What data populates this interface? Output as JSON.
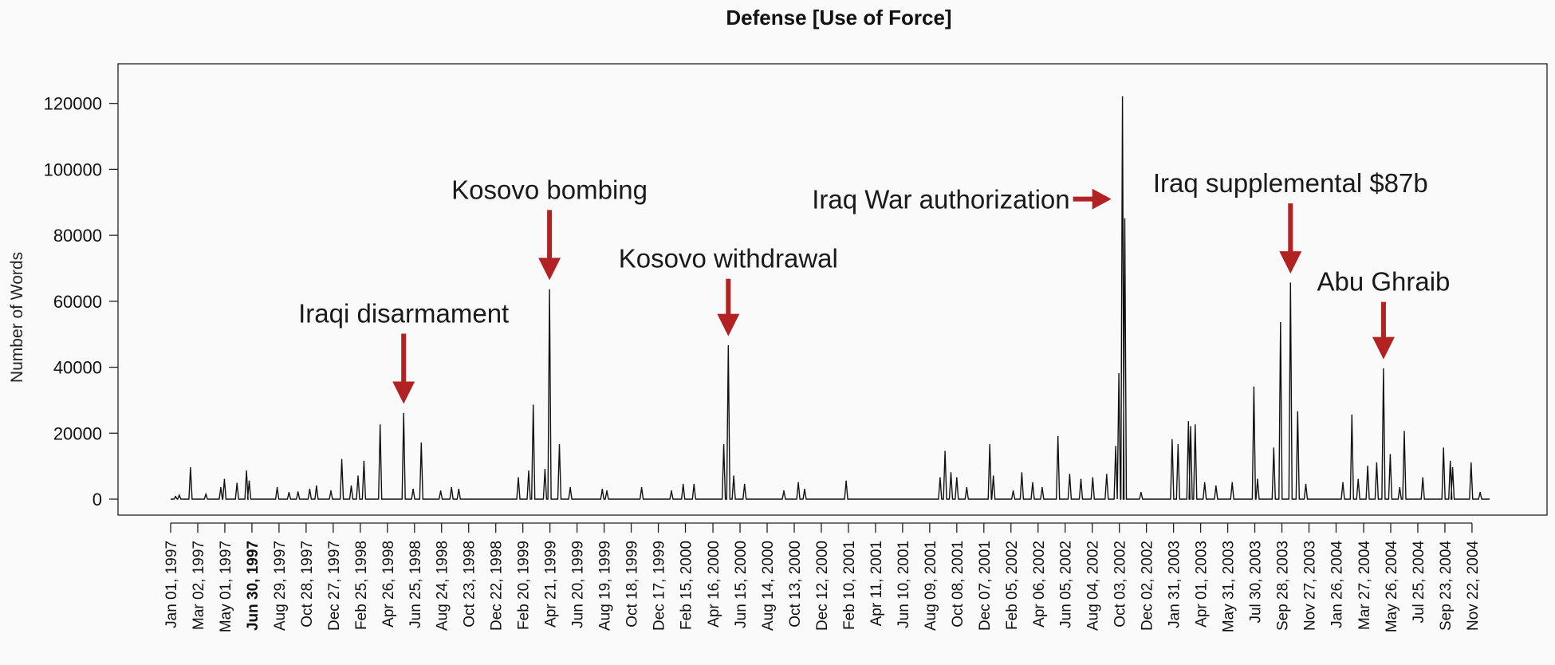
{
  "chart_data": {
    "type": "line",
    "title": "Defense [Use of Force]",
    "xlabel": "",
    "ylabel": "Number of Words",
    "ylim": [
      0,
      125000
    ],
    "xlim": [
      "1997-01-01",
      "2004-12-31"
    ],
    "yticks": [
      0,
      20000,
      40000,
      60000,
      80000,
      100000,
      120000
    ],
    "xtick_labels": [
      {
        "date": "1997-01-01",
        "label": "Jan 01, 1997",
        "bold": false
      },
      {
        "date": "1997-03-02",
        "label": "Mar 02, 1997",
        "bold": false
      },
      {
        "date": "1997-05-01",
        "label": "May 01, 1997",
        "bold": false
      },
      {
        "date": "1997-06-30",
        "label": "Jun 30, 1997",
        "bold": true
      },
      {
        "date": "1997-08-29",
        "label": "Aug 29, 1997",
        "bold": false
      },
      {
        "date": "1997-10-28",
        "label": "Oct 28, 1997",
        "bold": false
      },
      {
        "date": "1997-12-27",
        "label": "Dec 27, 1997",
        "bold": false
      },
      {
        "date": "1998-02-25",
        "label": "Feb 25, 1998",
        "bold": false
      },
      {
        "date": "1998-04-26",
        "label": "Apr 26, 1998",
        "bold": false
      },
      {
        "date": "1998-06-25",
        "label": "Jun 25, 1998",
        "bold": false
      },
      {
        "date": "1998-08-24",
        "label": "Aug 24, 1998",
        "bold": false
      },
      {
        "date": "1998-10-23",
        "label": "Oct 23, 1998",
        "bold": false
      },
      {
        "date": "1998-12-22",
        "label": "Dec 22, 1998",
        "bold": false
      },
      {
        "date": "1999-02-20",
        "label": "Feb 20, 1999",
        "bold": false
      },
      {
        "date": "1999-04-21",
        "label": "Apr 21, 1999",
        "bold": false
      },
      {
        "date": "1999-06-20",
        "label": "Jun 20, 1999",
        "bold": false
      },
      {
        "date": "1999-08-19",
        "label": "Aug 19, 1999",
        "bold": false
      },
      {
        "date": "1999-10-18",
        "label": "Oct 18, 1999",
        "bold": false
      },
      {
        "date": "1999-12-17",
        "label": "Dec 17, 1999",
        "bold": false
      },
      {
        "date": "2000-02-15",
        "label": "Feb 15, 2000",
        "bold": false
      },
      {
        "date": "2000-04-16",
        "label": "Apr 16, 2000",
        "bold": false
      },
      {
        "date": "2000-06-15",
        "label": "Jun 15, 2000",
        "bold": false
      },
      {
        "date": "2000-08-14",
        "label": "Aug 14, 2000",
        "bold": false
      },
      {
        "date": "2000-10-13",
        "label": "Oct 13, 2000",
        "bold": false
      },
      {
        "date": "2000-12-12",
        "label": "Dec 12, 2000",
        "bold": false
      },
      {
        "date": "2001-02-10",
        "label": "Feb 10, 2001",
        "bold": false
      },
      {
        "date": "2001-04-11",
        "label": "Apr 11, 2001",
        "bold": false
      },
      {
        "date": "2001-06-10",
        "label": "Jun 10, 2001",
        "bold": false
      },
      {
        "date": "2001-08-09",
        "label": "Aug 09, 2001",
        "bold": false
      },
      {
        "date": "2001-10-08",
        "label": "Oct 08, 2001",
        "bold": false
      },
      {
        "date": "2001-12-07",
        "label": "Dec 07, 2001",
        "bold": false
      },
      {
        "date": "2002-02-05",
        "label": "Feb 05, 2002",
        "bold": false
      },
      {
        "date": "2002-04-06",
        "label": "Apr 06, 2002",
        "bold": false
      },
      {
        "date": "2002-06-05",
        "label": "Jun 05, 2002",
        "bold": false
      },
      {
        "date": "2002-08-04",
        "label": "Aug 04, 2002",
        "bold": false
      },
      {
        "date": "2002-10-03",
        "label": "Oct 03, 2002",
        "bold": false
      },
      {
        "date": "2002-12-02",
        "label": "Dec 02, 2002",
        "bold": false
      },
      {
        "date": "2003-01-31",
        "label": "Jan 31, 2003",
        "bold": false
      },
      {
        "date": "2003-04-01",
        "label": "Apr 01, 2003",
        "bold": false
      },
      {
        "date": "2003-05-31",
        "label": "May 31, 2003",
        "bold": false
      },
      {
        "date": "2003-07-30",
        "label": "Jul 30, 2003",
        "bold": false
      },
      {
        "date": "2003-09-28",
        "label": "Sep 28, 2003",
        "bold": false
      },
      {
        "date": "2003-11-27",
        "label": "Nov 27, 2003",
        "bold": false
      },
      {
        "date": "2004-01-26",
        "label": "Jan 26, 2004",
        "bold": false
      },
      {
        "date": "2004-03-27",
        "label": "Mar 27, 2004",
        "bold": false
      },
      {
        "date": "2004-05-26",
        "label": "May 26, 2004",
        "bold": false
      },
      {
        "date": "2004-07-25",
        "label": "Jul 25, 2004",
        "bold": false
      },
      {
        "date": "2004-09-23",
        "label": "Sep 23, 2004",
        "bold": false
      },
      {
        "date": "2004-11-22",
        "label": "Nov 22, 2004",
        "bold": false
      }
    ],
    "series": [
      {
        "color": "#111111",
        "points": [
          [
            "1997-01-12",
            800
          ],
          [
            "1997-01-20",
            1200
          ],
          [
            "1997-02-14",
            9500
          ],
          [
            "1997-03-20",
            1500
          ],
          [
            "1997-04-22",
            3500
          ],
          [
            "1997-04-30",
            6000
          ],
          [
            "1997-05-28",
            4800
          ],
          [
            "1997-06-18",
            8500
          ],
          [
            "1997-06-24",
            5500
          ],
          [
            "1997-08-25",
            3500
          ],
          [
            "1997-09-20",
            2000
          ],
          [
            "1997-10-10",
            2200
          ],
          [
            "1997-11-05",
            3000
          ],
          [
            "1997-11-20",
            4000
          ],
          [
            "1997-12-22",
            2500
          ],
          [
            "1998-01-15",
            12000
          ],
          [
            "1998-02-05",
            4000
          ],
          [
            "1998-02-20",
            7000
          ],
          [
            "1998-03-05",
            11500
          ],
          [
            "1998-04-10",
            22500
          ],
          [
            "1998-06-01",
            26000
          ],
          [
            "1998-06-22",
            3000
          ],
          [
            "1998-07-10",
            17000
          ],
          [
            "1998-08-22",
            2500
          ],
          [
            "1998-09-15",
            3500
          ],
          [
            "1998-10-01",
            3000
          ],
          [
            "1999-02-10",
            6500
          ],
          [
            "1999-03-05",
            8500
          ],
          [
            "1999-03-15",
            28500
          ],
          [
            "1999-04-10",
            9000
          ],
          [
            "1999-04-20",
            63500
          ],
          [
            "1999-05-12",
            16500
          ],
          [
            "1999-06-05",
            3500
          ],
          [
            "1999-08-15",
            3000
          ],
          [
            "1999-08-25",
            2500
          ],
          [
            "1999-11-10",
            3500
          ],
          [
            "2000-01-15",
            2500
          ],
          [
            "2000-02-10",
            4500
          ],
          [
            "2000-03-05",
            4500
          ],
          [
            "2000-05-10",
            16500
          ],
          [
            "2000-05-20",
            46500
          ],
          [
            "2000-06-01",
            7000
          ],
          [
            "2000-06-25",
            4500
          ],
          [
            "2000-09-20",
            2500
          ],
          [
            "2000-10-22",
            5000
          ],
          [
            "2000-11-05",
            3000
          ],
          [
            "2001-02-05",
            5500
          ],
          [
            "2001-09-01",
            6500
          ],
          [
            "2001-09-12",
            14500
          ],
          [
            "2001-09-25",
            8000
          ],
          [
            "2001-10-08",
            6500
          ],
          [
            "2001-10-30",
            3500
          ],
          [
            "2001-12-20",
            16500
          ],
          [
            "2001-12-28",
            7000
          ],
          [
            "2002-02-10",
            2500
          ],
          [
            "2002-03-01",
            8000
          ],
          [
            "2002-03-25",
            5000
          ],
          [
            "2002-04-15",
            3500
          ],
          [
            "2002-05-20",
            19000
          ],
          [
            "2002-06-15",
            7500
          ],
          [
            "2002-07-10",
            6000
          ],
          [
            "2002-08-05",
            6500
          ],
          [
            "2002-09-05",
            7500
          ],
          [
            "2002-09-25",
            16000
          ],
          [
            "2002-10-02",
            38000
          ],
          [
            "2002-10-10",
            122000
          ],
          [
            "2002-10-15",
            85000
          ],
          [
            "2002-11-20",
            2000
          ],
          [
            "2003-01-28",
            18000
          ],
          [
            "2003-02-10",
            16500
          ],
          [
            "2003-03-05",
            23500
          ],
          [
            "2003-03-10",
            22000
          ],
          [
            "2003-03-20",
            22500
          ],
          [
            "2003-04-10",
            5000
          ],
          [
            "2003-05-05",
            4000
          ],
          [
            "2003-06-10",
            5000
          ],
          [
            "2003-07-28",
            34000
          ],
          [
            "2003-08-05",
            6000
          ],
          [
            "2003-09-10",
            15500
          ],
          [
            "2003-09-25",
            53500
          ],
          [
            "2003-10-17",
            65500
          ],
          [
            "2003-11-02",
            26500
          ],
          [
            "2003-11-20",
            4500
          ],
          [
            "2004-02-10",
            5000
          ],
          [
            "2004-03-01",
            25500
          ],
          [
            "2004-03-15",
            6000
          ],
          [
            "2004-04-05",
            10000
          ],
          [
            "2004-04-25",
            11000
          ],
          [
            "2004-05-10",
            39500
          ],
          [
            "2004-05-25",
            13500
          ],
          [
            "2004-06-15",
            3500
          ],
          [
            "2004-06-25",
            20500
          ],
          [
            "2004-08-05",
            6500
          ],
          [
            "2004-09-20",
            15500
          ],
          [
            "2004-10-05",
            11500
          ],
          [
            "2004-10-10",
            9500
          ],
          [
            "2004-11-20",
            11000
          ],
          [
            "2004-12-10",
            2000
          ]
        ]
      }
    ],
    "annotations": [
      {
        "text": "Iraqi disarmament",
        "date": "1998-06-01",
        "value": 26000,
        "arrow": "down"
      },
      {
        "text": "Kosovo bombing",
        "date": "1999-04-20",
        "value": 63500,
        "arrow": "down"
      },
      {
        "text": "Kosovo withdrawal",
        "date": "2000-05-20",
        "value": 46500,
        "arrow": "down"
      },
      {
        "text": "Iraq War authorization",
        "date": "2002-10-10",
        "value": 91000,
        "arrow": "right"
      },
      {
        "text": "Iraq supplemental $87b",
        "date": "2003-10-17",
        "value": 65500,
        "arrow": "down"
      },
      {
        "text": "Abu Ghraib",
        "date": "2004-05-10",
        "value": 39500,
        "arrow": "down"
      }
    ],
    "grid": false,
    "legend": "none"
  }
}
